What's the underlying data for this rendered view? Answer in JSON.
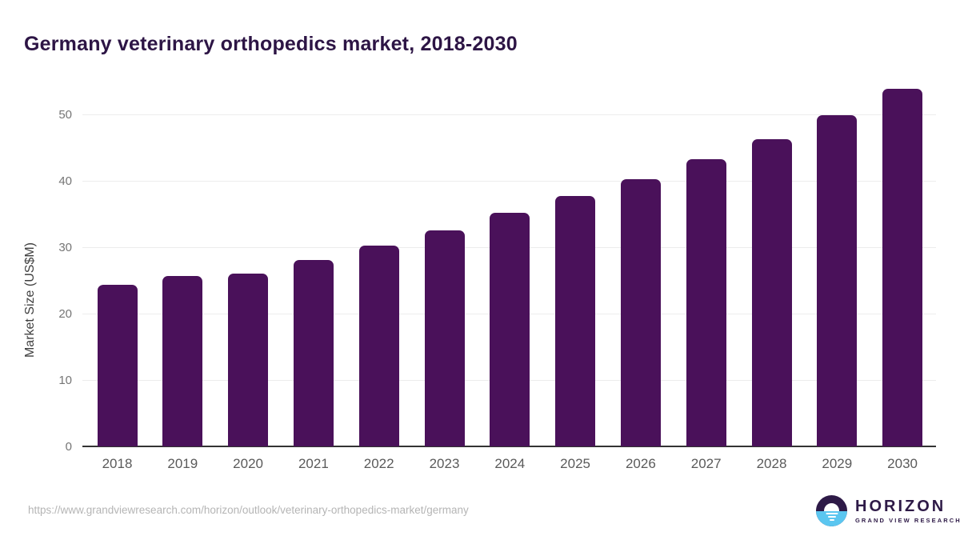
{
  "page": {
    "title": "Germany veterinary orthopedics market, 2018-2030"
  },
  "chart_data": {
    "type": "bar",
    "title": "Germany veterinary orthopedics market, 2018-2030",
    "categories": [
      "2018",
      "2019",
      "2020",
      "2021",
      "2022",
      "2023",
      "2024",
      "2025",
      "2026",
      "2027",
      "2028",
      "2029",
      "2030"
    ],
    "values": [
      24.3,
      25.7,
      26.0,
      28.1,
      30.2,
      32.5,
      35.2,
      37.7,
      40.3,
      43.2,
      46.3,
      49.9,
      53.8
    ],
    "xlabel": "",
    "ylabel": "Market Size (US$M)",
    "ylim": [
      0,
      55
    ],
    "yticks": [
      0,
      10,
      20,
      30,
      40,
      50
    ],
    "grid": true,
    "legend": false,
    "bar_color": "#4a115a"
  },
  "footer": {
    "source_url": "https://www.grandviewresearch.com/horizon/outlook/veterinary-orthopedics-market/germany",
    "logo": {
      "brand": "HORIZON",
      "tagline": "GRAND VIEW RESEARCH"
    }
  },
  "colors": {
    "title_text": "#2d1545",
    "bar": "#4a115a",
    "grid": "#ececec",
    "baseline": "#333333",
    "y_tick_text": "#757575",
    "x_tick_text": "#5a5a5a",
    "axis_title_text": "#3f3f3f",
    "url_text": "#b5b5b5",
    "logo_purple": "#2e1a47",
    "logo_blue": "#5bc6f0"
  }
}
